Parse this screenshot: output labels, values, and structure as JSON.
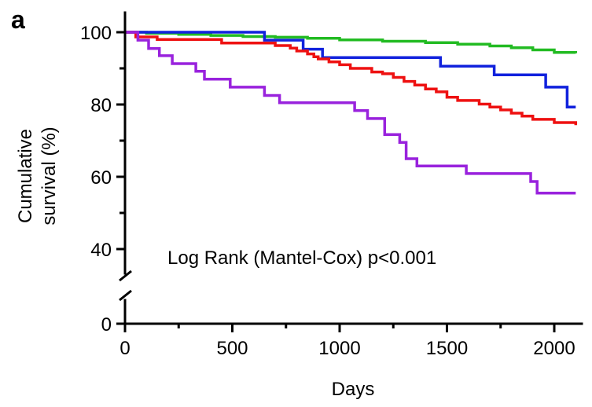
{
  "panel_label": "a",
  "annotation": "Log Rank (Mantel-Cox) p<0.001",
  "chart_data": {
    "type": "line",
    "step": true,
    "title": "",
    "xlabel": "Days",
    "ylabel_lines": [
      "Cumulative",
      "survival (%)"
    ],
    "xlim": [
      0,
      2100
    ],
    "ylim": [
      0,
      100
    ],
    "y_axis_break": [
      0,
      40
    ],
    "x_ticks": [
      0,
      500,
      1000,
      1500,
      2000
    ],
    "x_tick_labels": [
      "0",
      "500",
      "1000",
      "1500",
      "2000"
    ],
    "y_ticks": [
      0,
      40,
      60,
      80,
      100
    ],
    "y_tick_labels": [
      "0",
      "40",
      "60",
      "80",
      "100"
    ],
    "grid": false,
    "legend": "none",
    "series": [
      {
        "color": "#22bb22",
        "x": [
          0,
          100,
          250,
          400,
          550,
          700,
          850,
          1000,
          1200,
          1400,
          1550,
          1700,
          1800,
          1900,
          2000,
          2100
        ],
        "y": [
          100,
          99.7,
          99.4,
          99.1,
          98.8,
          98.6,
          98.3,
          97.9,
          97.5,
          97.1,
          96.7,
          96.2,
          95.7,
          95.1,
          94.4,
          94.2
        ]
      },
      {
        "color": "#1122dd",
        "x": [
          0,
          650,
          830,
          920,
          1010,
          1470,
          1720,
          1960,
          2060,
          2100
        ],
        "y": [
          100,
          97.8,
          95.3,
          93.0,
          93.0,
          90.6,
          88.2,
          84.8,
          79.3,
          79.3
        ]
      },
      {
        "color": "#ee1111",
        "x": [
          0,
          50,
          150,
          450,
          700,
          770,
          800,
          850,
          880,
          900,
          950,
          1000,
          1050,
          1150,
          1200,
          1250,
          1300,
          1350,
          1400,
          1450,
          1500,
          1550,
          1650,
          1700,
          1750,
          1800,
          1850,
          1900,
          2000,
          2100
        ],
        "y": [
          100,
          98.7,
          98.0,
          97.0,
          96.3,
          95.6,
          94.8,
          94.0,
          93.2,
          92.6,
          91.8,
          91.0,
          90.0,
          89.0,
          88.5,
          87.5,
          86.4,
          85.4,
          84.3,
          83.5,
          82.0,
          81.1,
          80.1,
          79.3,
          78.5,
          77.6,
          76.8,
          75.9,
          75.0,
          74.3
        ]
      },
      {
        "color": "#9922dd",
        "x": [
          0,
          60,
          110,
          160,
          220,
          330,
          370,
          490,
          650,
          720,
          1070,
          1130,
          1210,
          1280,
          1310,
          1360,
          1590,
          1890,
          1920,
          2100
        ],
        "y": [
          100,
          97.8,
          95.5,
          93.5,
          91.3,
          89.2,
          87.0,
          84.8,
          82.5,
          80.5,
          78.3,
          76.1,
          71.7,
          69.5,
          65.0,
          63.0,
          60.9,
          58.7,
          55.5,
          55.5
        ]
      }
    ]
  }
}
